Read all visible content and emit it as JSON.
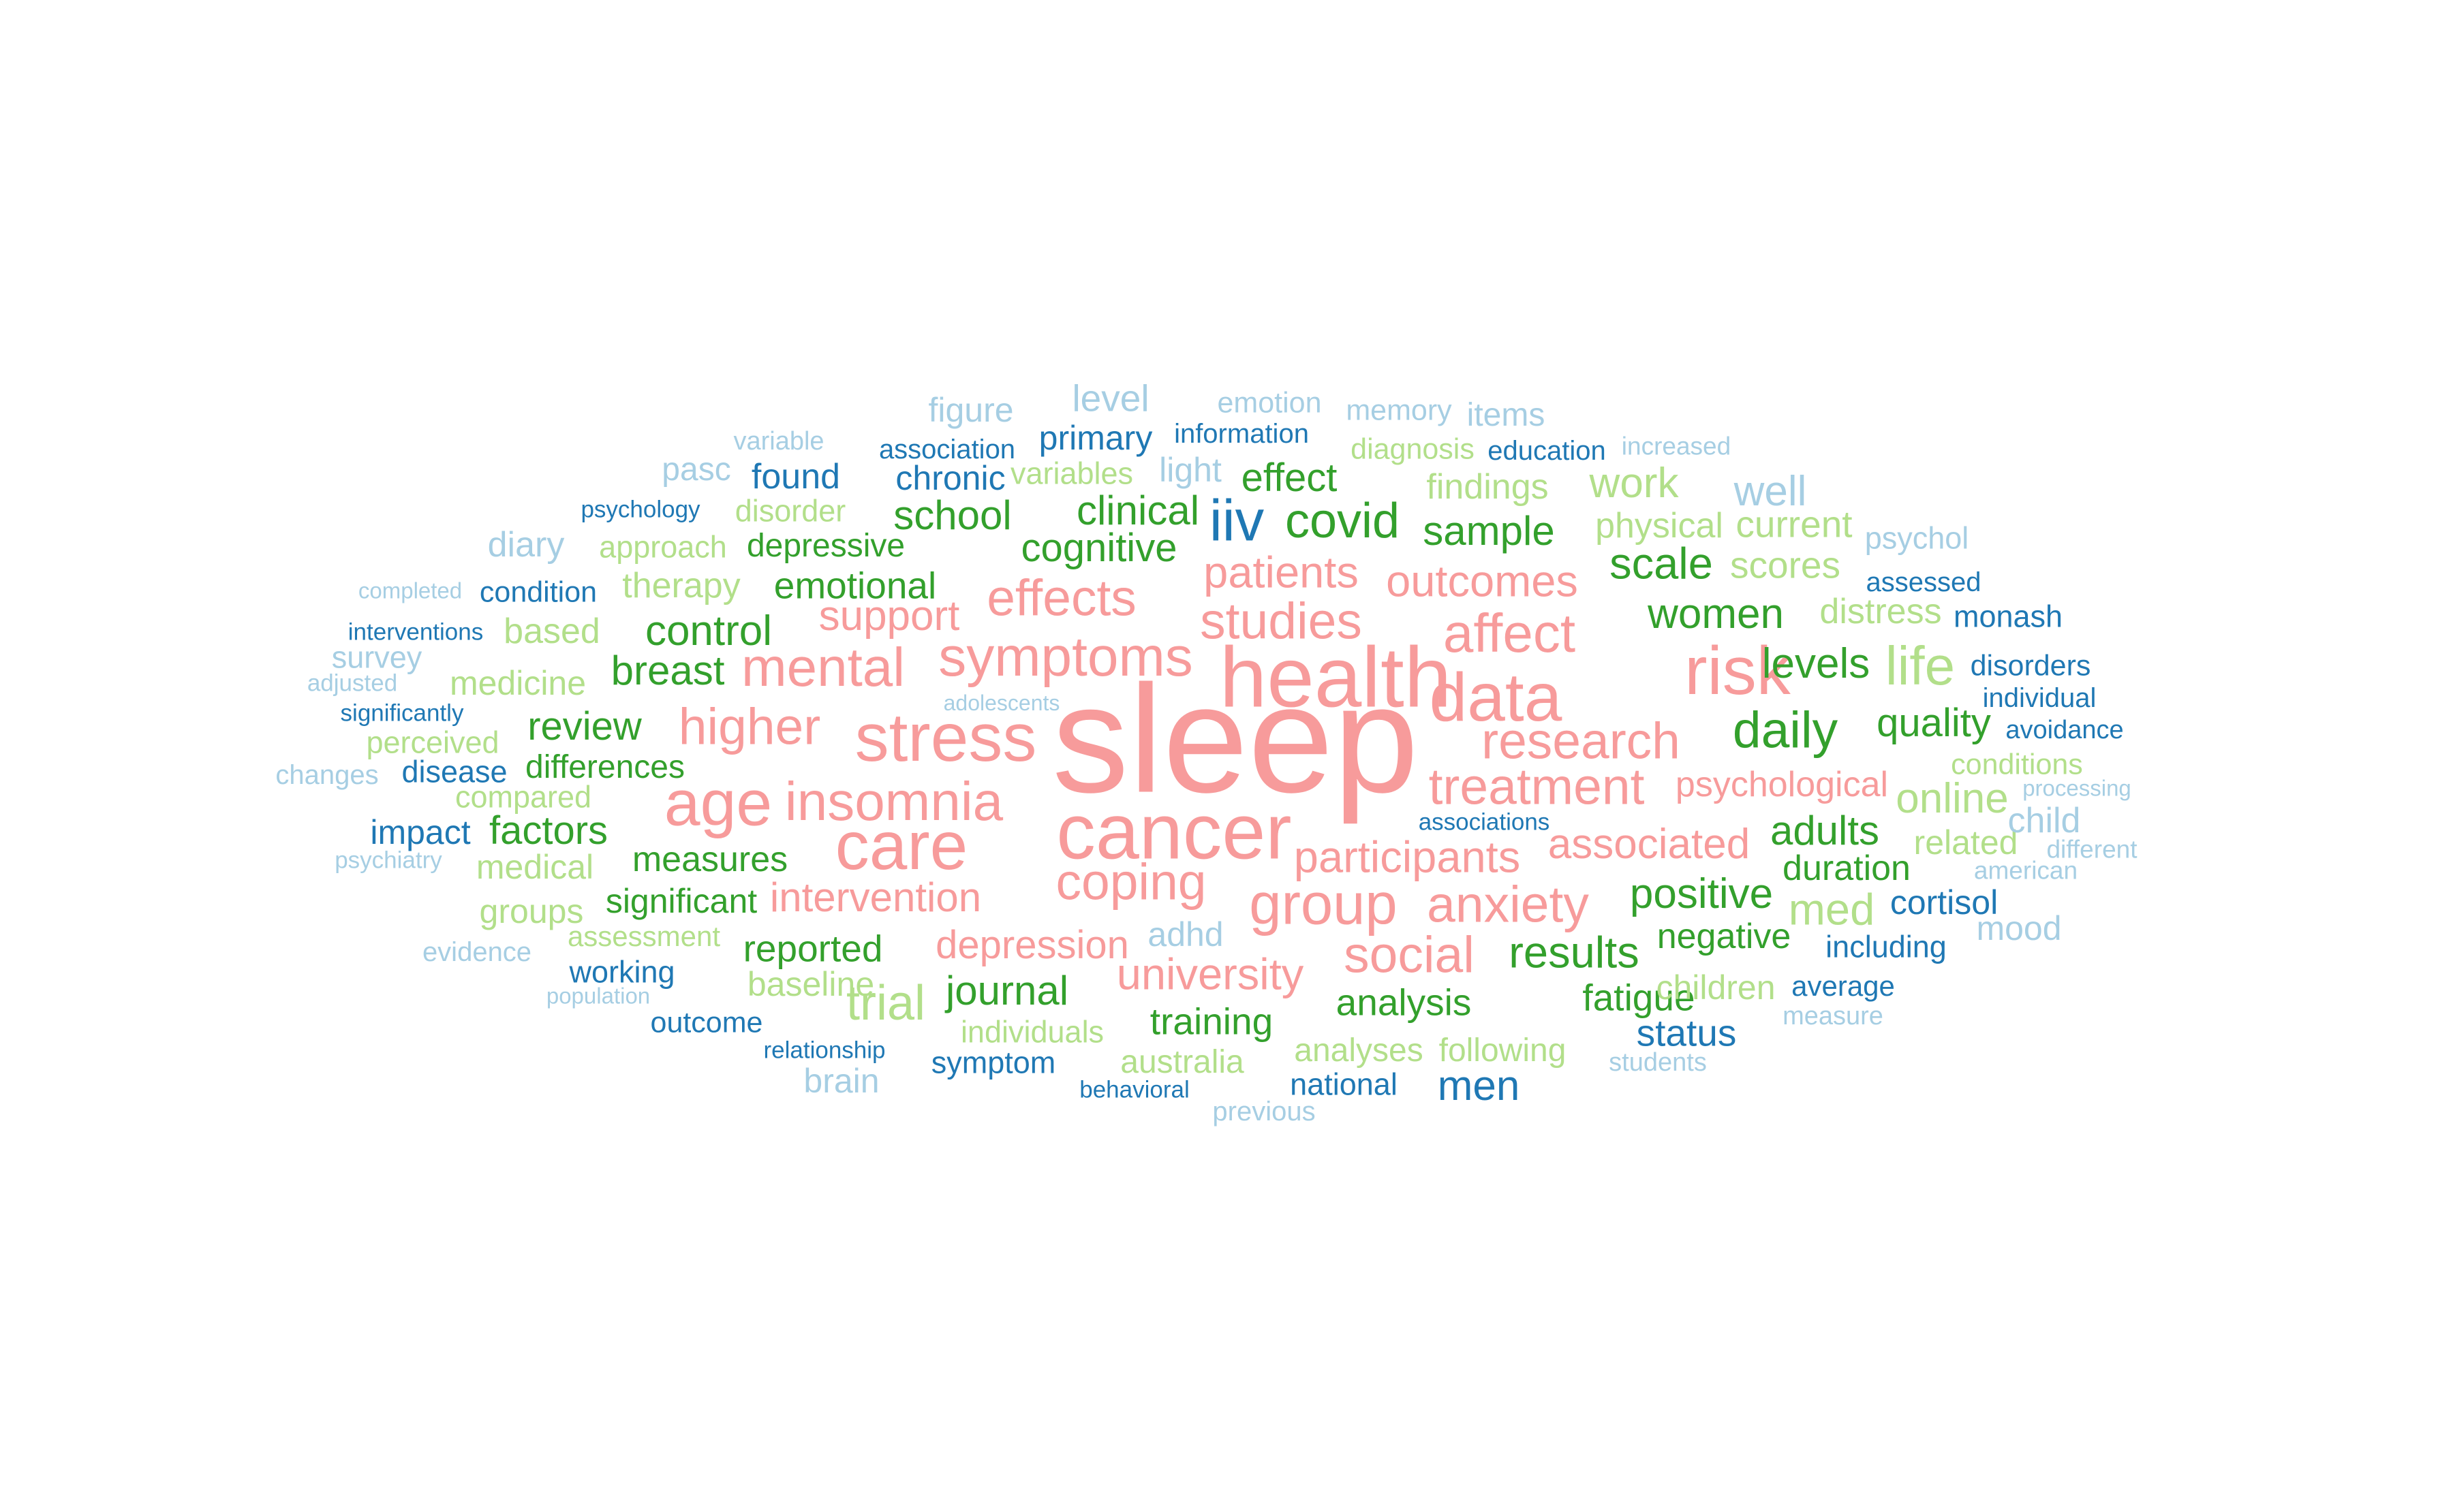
{
  "palette": {
    "pink": "#f79b9b",
    "dark_green": "#33a02c",
    "light_green": "#b2df8a",
    "dark_blue": "#1f78b4",
    "light_blue": "#a6cee3"
  },
  "words": [
    {
      "text": "sleep",
      "color": "pink"
    },
    {
      "text": "health",
      "color": "pink"
    },
    {
      "text": "cancer",
      "color": "pink"
    },
    {
      "text": "stress",
      "color": "pink"
    },
    {
      "text": "care",
      "color": "pink"
    },
    {
      "text": "data",
      "color": "pink"
    },
    {
      "text": "risk",
      "color": "pink"
    },
    {
      "text": "symptoms",
      "color": "pink"
    },
    {
      "text": "age",
      "color": "pink"
    },
    {
      "text": "affect",
      "color": "pink"
    },
    {
      "text": "mental",
      "color": "pink"
    },
    {
      "text": "insomnia",
      "color": "pink"
    },
    {
      "text": "group",
      "color": "pink"
    },
    {
      "text": "anxiety",
      "color": "pink"
    },
    {
      "text": "coping",
      "color": "pink"
    },
    {
      "text": "social",
      "color": "pink"
    },
    {
      "text": "higher",
      "color": "pink"
    },
    {
      "text": "research",
      "color": "pink"
    },
    {
      "text": "effects",
      "color": "pink"
    },
    {
      "text": "studies",
      "color": "pink"
    },
    {
      "text": "treatment",
      "color": "pink"
    },
    {
      "text": "participants",
      "color": "pink"
    },
    {
      "text": "patients",
      "color": "pink"
    },
    {
      "text": "outcomes",
      "color": "pink"
    },
    {
      "text": "associated",
      "color": "pink"
    },
    {
      "text": "university",
      "color": "pink"
    },
    {
      "text": "support",
      "color": "pink"
    },
    {
      "text": "intervention",
      "color": "pink"
    },
    {
      "text": "depression",
      "color": "pink"
    },
    {
      "text": "psychological",
      "color": "pink"
    },
    {
      "text": "daily",
      "color": "dark_green"
    },
    {
      "text": "covid",
      "color": "dark_green"
    },
    {
      "text": "results",
      "color": "dark_green"
    },
    {
      "text": "scale",
      "color": "dark_green"
    },
    {
      "text": "women",
      "color": "dark_green"
    },
    {
      "text": "positive",
      "color": "dark_green"
    },
    {
      "text": "control",
      "color": "dark_green"
    },
    {
      "text": "levels",
      "color": "dark_green"
    },
    {
      "text": "journal",
      "color": "dark_green"
    },
    {
      "text": "adults",
      "color": "dark_green"
    },
    {
      "text": "breast",
      "color": "dark_green"
    },
    {
      "text": "school",
      "color": "dark_green"
    },
    {
      "text": "clinical",
      "color": "dark_green"
    },
    {
      "text": "sample",
      "color": "dark_green"
    },
    {
      "text": "quality",
      "color": "dark_green"
    },
    {
      "text": "factors",
      "color": "dark_green"
    },
    {
      "text": "review",
      "color": "dark_green"
    },
    {
      "text": "effect",
      "color": "dark_green"
    },
    {
      "text": "cognitive",
      "color": "dark_green"
    },
    {
      "text": "emotional",
      "color": "dark_green"
    },
    {
      "text": "fatigue",
      "color": "dark_green"
    },
    {
      "text": "training",
      "color": "dark_green"
    },
    {
      "text": "duration",
      "color": "dark_green"
    },
    {
      "text": "reported",
      "color": "dark_green"
    },
    {
      "text": "analysis",
      "color": "dark_green"
    },
    {
      "text": "negative",
      "color": "dark_green"
    },
    {
      "text": "measures",
      "color": "dark_green"
    },
    {
      "text": "significant",
      "color": "dark_green"
    },
    {
      "text": "differences",
      "color": "dark_green"
    },
    {
      "text": "depressive",
      "color": "dark_green"
    },
    {
      "text": "life",
      "color": "light_green"
    },
    {
      "text": "trial",
      "color": "light_green"
    },
    {
      "text": "med",
      "color": "light_green"
    },
    {
      "text": "online",
      "color": "light_green"
    },
    {
      "text": "work",
      "color": "light_green"
    },
    {
      "text": "scores",
      "color": "light_green"
    },
    {
      "text": "current",
      "color": "light_green"
    },
    {
      "text": "physical",
      "color": "light_green"
    },
    {
      "text": "findings",
      "color": "light_green"
    },
    {
      "text": "distress",
      "color": "light_green"
    },
    {
      "text": "therapy",
      "color": "light_green"
    },
    {
      "text": "based",
      "color": "light_green"
    },
    {
      "text": "medicine",
      "color": "light_green"
    },
    {
      "text": "related",
      "color": "light_green"
    },
    {
      "text": "baseline",
      "color": "light_green"
    },
    {
      "text": "children",
      "color": "light_green"
    },
    {
      "text": "medical",
      "color": "light_green"
    },
    {
      "text": "groups",
      "color": "light_green"
    },
    {
      "text": "compared",
      "color": "light_green"
    },
    {
      "text": "perceived",
      "color": "light_green"
    },
    {
      "text": "disorder",
      "color": "light_green"
    },
    {
      "text": "approach",
      "color": "light_green"
    },
    {
      "text": "variables",
      "color": "light_green"
    },
    {
      "text": "diagnosis",
      "color": "light_green"
    },
    {
      "text": "conditions",
      "color": "light_green"
    },
    {
      "text": "individuals",
      "color": "light_green"
    },
    {
      "text": "australia",
      "color": "light_green"
    },
    {
      "text": "analyses",
      "color": "light_green"
    },
    {
      "text": "following",
      "color": "light_green"
    },
    {
      "text": "assessment",
      "color": "light_green"
    },
    {
      "text": "iiv",
      "color": "dark_blue"
    },
    {
      "text": "men",
      "color": "dark_blue"
    },
    {
      "text": "status",
      "color": "dark_blue"
    },
    {
      "text": "found",
      "color": "dark_blue"
    },
    {
      "text": "chronic",
      "color": "dark_blue"
    },
    {
      "text": "primary",
      "color": "dark_blue"
    },
    {
      "text": "cortisol",
      "color": "dark_blue"
    },
    {
      "text": "impact",
      "color": "dark_blue"
    },
    {
      "text": "disease",
      "color": "dark_blue"
    },
    {
      "text": "working",
      "color": "dark_blue"
    },
    {
      "text": "including",
      "color": "dark_blue"
    },
    {
      "text": "monash",
      "color": "dark_blue"
    },
    {
      "text": "disorders",
      "color": "dark_blue"
    },
    {
      "text": "condition",
      "color": "dark_blue"
    },
    {
      "text": "outcome",
      "color": "dark_blue"
    },
    {
      "text": "symptom",
      "color": "dark_blue"
    },
    {
      "text": "national",
      "color": "dark_blue"
    },
    {
      "text": "average",
      "color": "dark_blue"
    },
    {
      "text": "individual",
      "color": "dark_blue"
    },
    {
      "text": "information",
      "color": "dark_blue"
    },
    {
      "text": "association",
      "color": "dark_blue"
    },
    {
      "text": "education",
      "color": "dark_blue"
    },
    {
      "text": "assessed",
      "color": "dark_blue"
    },
    {
      "text": "avoidance",
      "color": "dark_blue"
    },
    {
      "text": "associations",
      "color": "dark_blue"
    },
    {
      "text": "psychology",
      "color": "dark_blue"
    },
    {
      "text": "interventions",
      "color": "dark_blue"
    },
    {
      "text": "significantly",
      "color": "dark_blue"
    },
    {
      "text": "relationship",
      "color": "dark_blue"
    },
    {
      "text": "behavioral",
      "color": "dark_blue"
    },
    {
      "text": "well",
      "color": "light_blue"
    },
    {
      "text": "level",
      "color": "light_blue"
    },
    {
      "text": "diary",
      "color": "light_blue"
    },
    {
      "text": "child",
      "color": "light_blue"
    },
    {
      "text": "mood",
      "color": "light_blue"
    },
    {
      "text": "adhd",
      "color": "light_blue"
    },
    {
      "text": "light",
      "color": "light_blue"
    },
    {
      "text": "brain",
      "color": "light_blue"
    },
    {
      "text": "figure",
      "color": "light_blue"
    },
    {
      "text": "items",
      "color": "light_blue"
    },
    {
      "text": "pasc",
      "color": "light_blue"
    },
    {
      "text": "survey",
      "color": "light_blue"
    },
    {
      "text": "psychol",
      "color": "light_blue"
    },
    {
      "text": "memory",
      "color": "light_blue"
    },
    {
      "text": "emotion",
      "color": "light_blue"
    },
    {
      "text": "evidence",
      "color": "light_blue"
    },
    {
      "text": "changes",
      "color": "light_blue"
    },
    {
      "text": "previous",
      "color": "light_blue"
    },
    {
      "text": "students",
      "color": "light_blue"
    },
    {
      "text": "measure",
      "color": "light_blue"
    },
    {
      "text": "american",
      "color": "light_blue"
    },
    {
      "text": "different",
      "color": "light_blue"
    },
    {
      "text": "psychiatry",
      "color": "light_blue"
    },
    {
      "text": "adjusted",
      "color": "light_blue"
    },
    {
      "text": "variable",
      "color": "light_blue"
    },
    {
      "text": "increased",
      "color": "light_blue"
    },
    {
      "text": "completed",
      "color": "light_blue"
    },
    {
      "text": "processing",
      "color": "light_blue"
    },
    {
      "text": "population",
      "color": "light_blue"
    },
    {
      "text": "adolescents",
      "color": "light_blue"
    }
  ]
}
